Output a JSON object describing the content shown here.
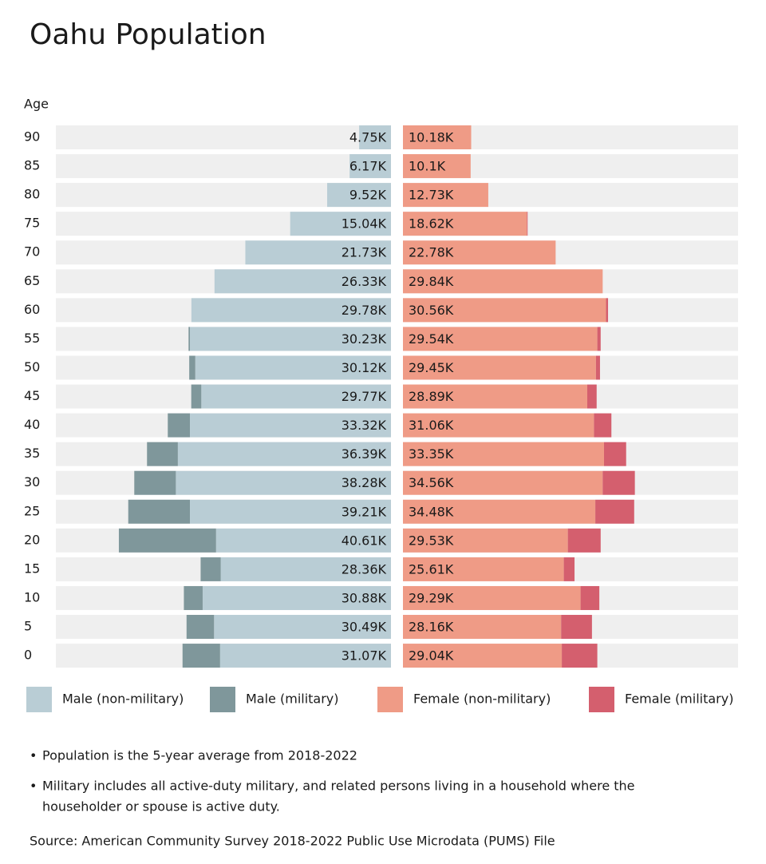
{
  "chart_data": {
    "type": "pyramid",
    "title": "Oahu Population",
    "y_label": "Age",
    "categories": [
      "90",
      "85",
      "80",
      "75",
      "70",
      "65",
      "60",
      "55",
      "50",
      "45",
      "40",
      "35",
      "30",
      "25",
      "20",
      "15",
      "10",
      "5",
      "0"
    ],
    "xlim": [
      0,
      50
    ],
    "series": [
      {
        "name": "Male (non-military)",
        "color": "#b9cdd5",
        "values": [
          4.75,
          6.17,
          9.52,
          15.04,
          21.73,
          26.33,
          29.78,
          30.0,
          29.2,
          28.3,
          30.0,
          31.8,
          32.1,
          30.0,
          26.1,
          25.4,
          28.1,
          26.4,
          25.5
        ]
      },
      {
        "name": "Male (military)",
        "color": "#7f979b",
        "values": [
          0,
          0,
          0,
          0,
          0,
          0,
          0,
          0.2,
          0.9,
          1.5,
          3.3,
          4.6,
          6.2,
          9.2,
          14.5,
          3.0,
          2.8,
          4.1,
          5.6
        ]
      },
      {
        "name": "Female (non-military)",
        "color": "#ef9b86",
        "values": [
          10.18,
          10.1,
          12.73,
          18.5,
          22.78,
          29.8,
          30.3,
          29.0,
          28.8,
          27.5,
          28.5,
          30.0,
          29.8,
          28.7,
          24.6,
          24.0,
          26.5,
          23.6,
          23.7
        ]
      },
      {
        "name": "Female (military)",
        "color": "#d45f6e",
        "values": [
          0,
          0,
          0,
          0.1,
          0,
          0,
          0.3,
          0.5,
          0.6,
          1.4,
          2.6,
          3.3,
          4.8,
          5.8,
          4.9,
          1.6,
          2.8,
          4.6,
          5.3
        ]
      }
    ],
    "male_totals": [
      "4.75K",
      "6.17K",
      "9.52K",
      "15.04K",
      "21.73K",
      "26.33K",
      "29.78K",
      "30.23K",
      "30.12K",
      "29.77K",
      "33.32K",
      "36.39K",
      "38.28K",
      "39.21K",
      "40.61K",
      "28.36K",
      "30.88K",
      "30.49K",
      "31.07K"
    ],
    "female_totals": [
      "10.18K",
      "10.1K",
      "12.73K",
      "18.62K",
      "22.78K",
      "29.84K",
      "30.56K",
      "29.54K",
      "29.45K",
      "28.89K",
      "31.06K",
      "33.35K",
      "34.56K",
      "34.48K",
      "29.53K",
      "25.61K",
      "29.29K",
      "28.16K",
      "29.04K"
    ]
  },
  "notes": [
    "Population is the 5-year average from 2018-2022",
    "Military includes all active-duty military, and related persons living in a household where the",
    "householder or spouse is active duty."
  ],
  "source": "Source: American Community Survey 2018-2022 Public Use Microdata (PUMS) File"
}
